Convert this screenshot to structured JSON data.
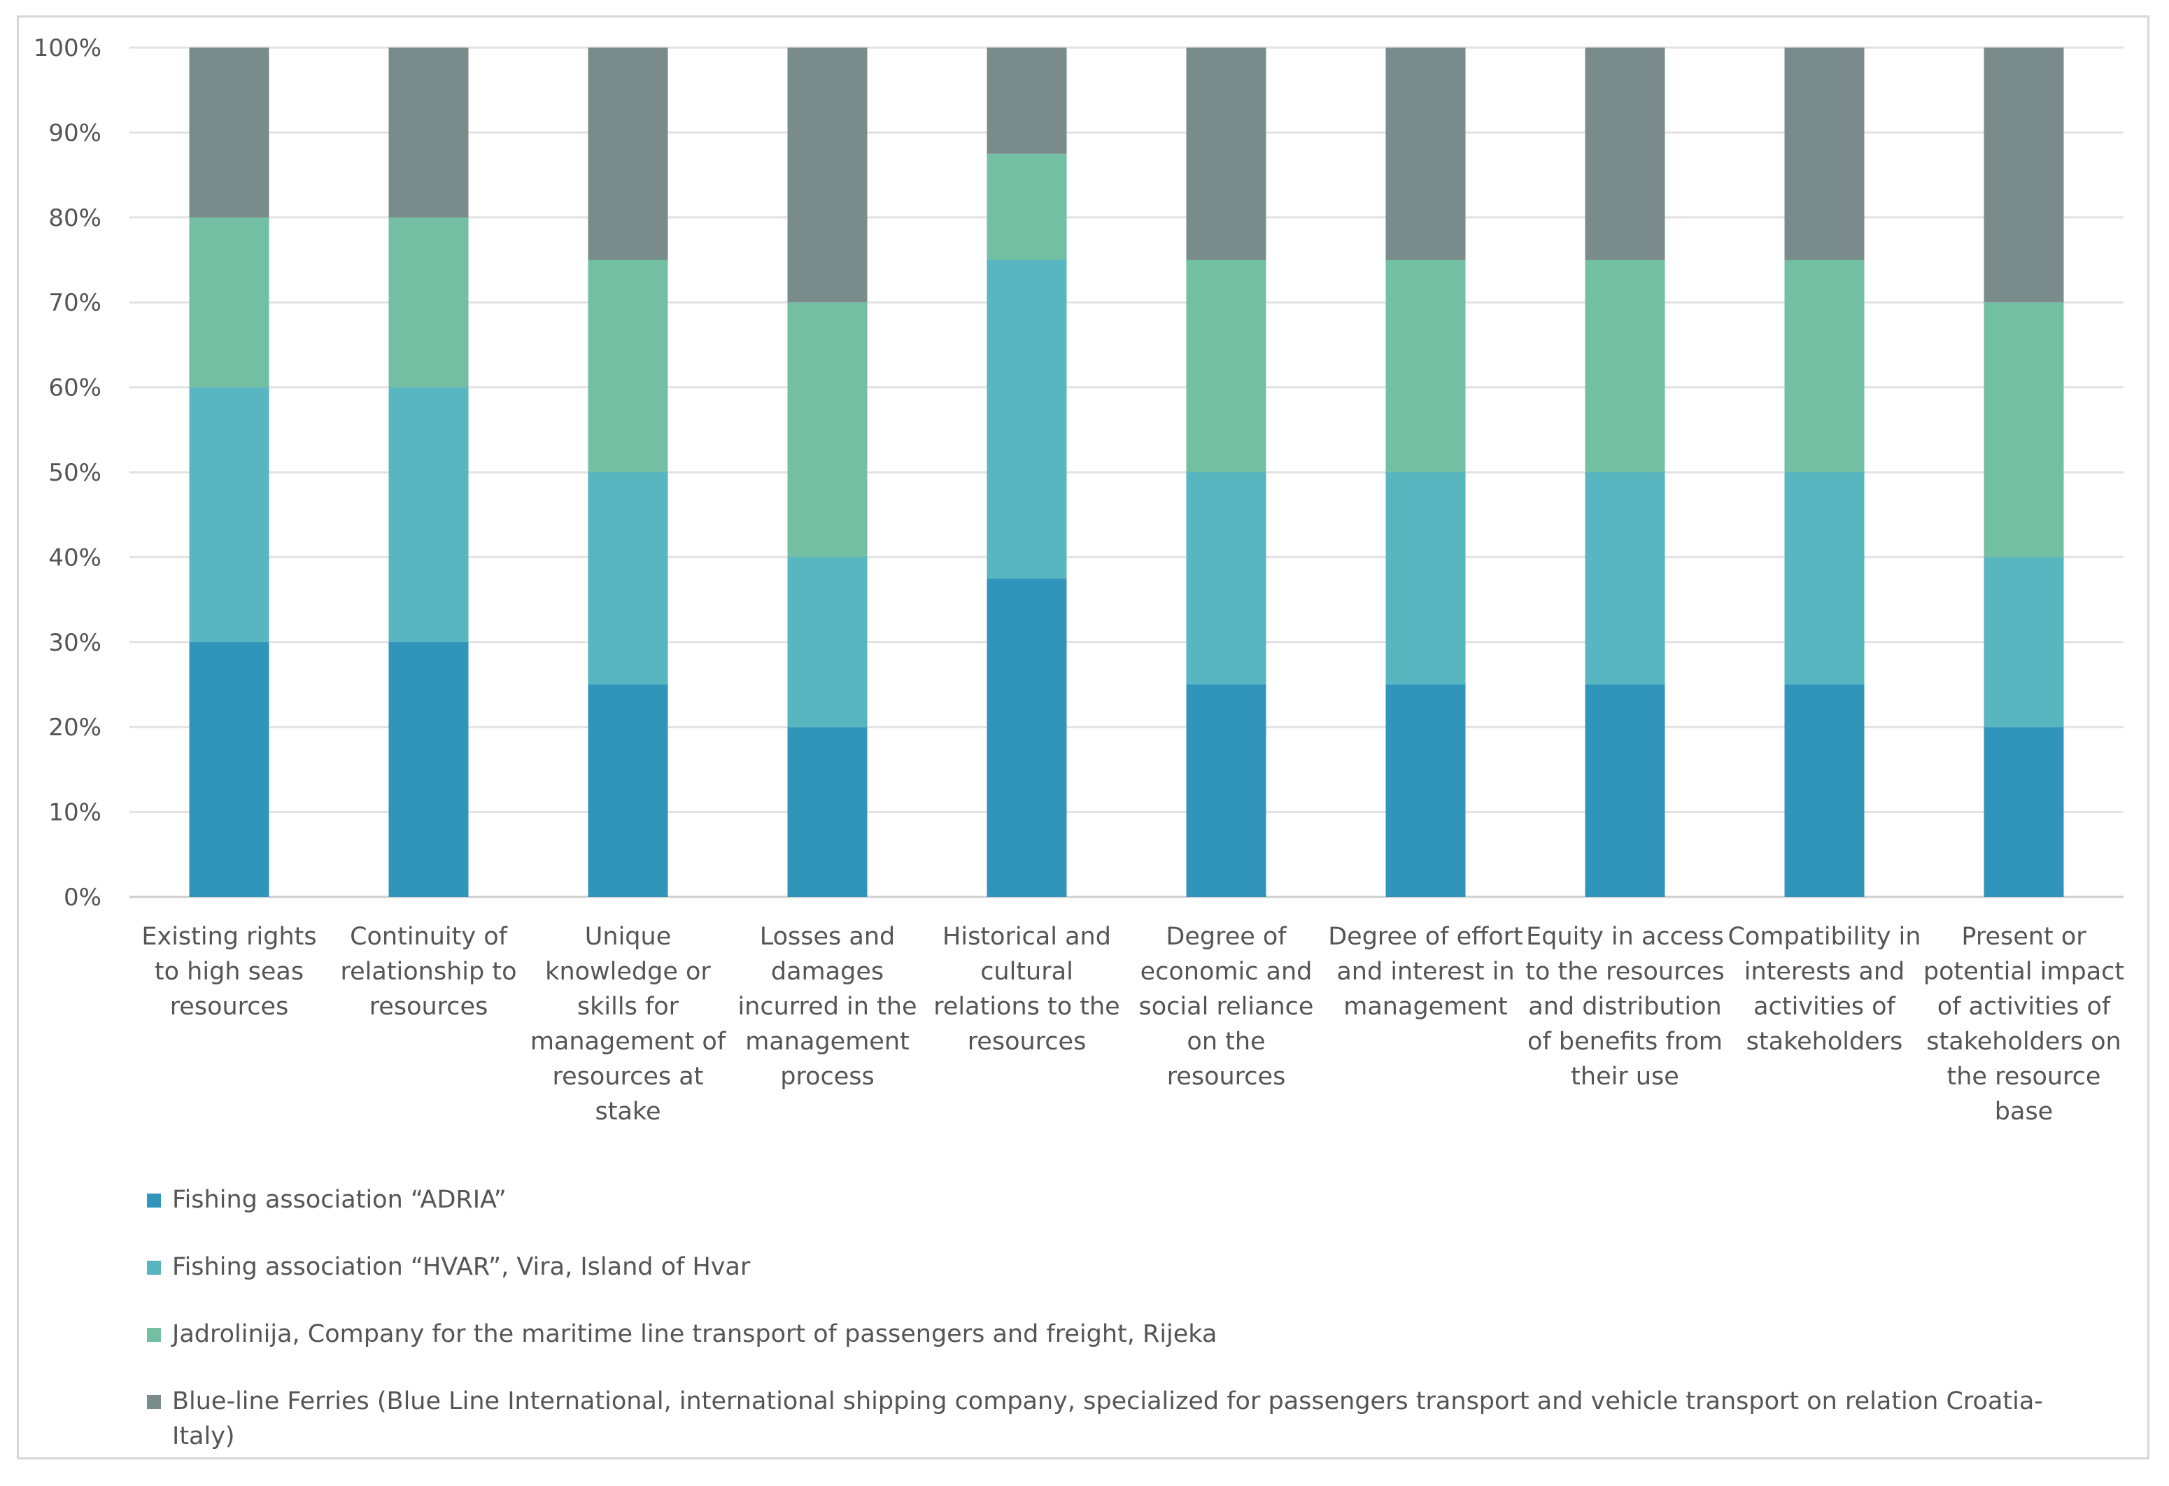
{
  "chart_data": {
    "type": "bar",
    "stacked": true,
    "percent_stacked": true,
    "ylim": [
      0,
      100
    ],
    "y_tick_labels": [
      "0%",
      "10%",
      "20%",
      "30%",
      "40%",
      "50%",
      "60%",
      "70%",
      "80%",
      "90%",
      "100%"
    ],
    "grid": true,
    "legend_position": "bottom",
    "categories": [
      [
        "Existing rights",
        "to high seas",
        "resources"
      ],
      [
        "Continuity of",
        "relationship to",
        "resources"
      ],
      [
        "Unique",
        "knowledge or",
        "skills for",
        "management of",
        "resources at",
        "stake"
      ],
      [
        "Losses and",
        "damages",
        "incurred in the",
        "management",
        "process"
      ],
      [
        "Historical and",
        "cultural",
        "relations to the",
        "resources"
      ],
      [
        "Degree of",
        "economic and",
        "social reliance",
        "on the",
        "resources"
      ],
      [
        "Degree of effort",
        "and interest in",
        "management"
      ],
      [
        "Equity in access",
        "to the resources",
        "and distribution",
        "of benefits from",
        "their use"
      ],
      [
        "Compatibility in",
        "interests and",
        "activities of",
        "stakeholders"
      ],
      [
        "Present or",
        "potential impact",
        "of activities of",
        "stakeholders on",
        "the resource",
        "base"
      ]
    ],
    "series": [
      {
        "name": "Fishing association “ADRIA”",
        "color": "#3194bb",
        "values": [
          30,
          30,
          25,
          20,
          37.5,
          25,
          25,
          25,
          25,
          20
        ]
      },
      {
        "name": "Fishing association “HVAR”,  Vira,  Island of Hvar",
        "color": "#57b6c0",
        "values": [
          30,
          30,
          25,
          20,
          37.5,
          25,
          25,
          25,
          25,
          20
        ]
      },
      {
        "name": "Jadrolinija, Company  for the  maritime  line transport of  passengers  and  freight,  Rijeka",
        "color": "#72bfa3",
        "values": [
          20,
          20,
          25,
          30,
          12.5,
          25,
          25,
          25,
          25,
          30
        ]
      },
      {
        "name": "Blue-line Ferries  (Blue Line International,  international  shipping  company,  specialized for passengers transport  and vehicle transport  on relation  Croatia-Italy)",
        "color": "#7a8b8b",
        "values": [
          20,
          20,
          25,
          30,
          12.5,
          25,
          25,
          25,
          25,
          30
        ]
      }
    ]
  }
}
